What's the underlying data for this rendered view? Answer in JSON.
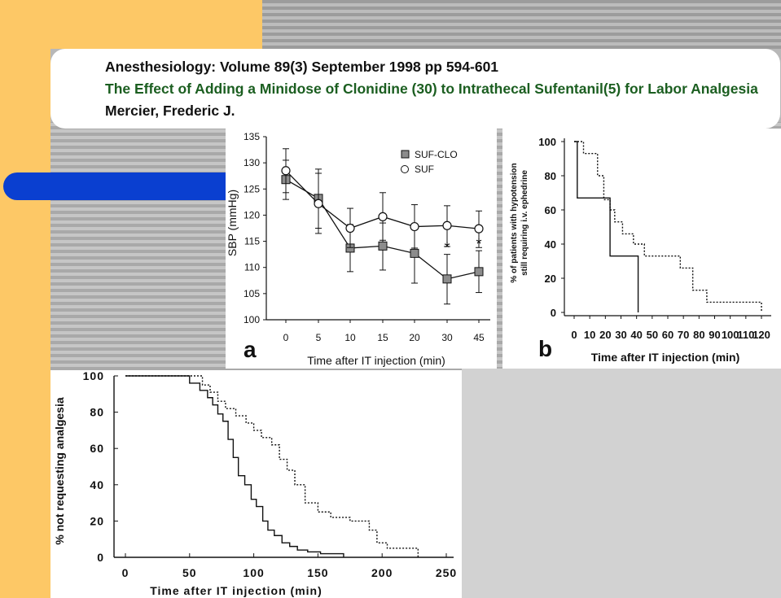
{
  "slide": {
    "colors": {
      "accent_yellow": "#fdc866",
      "accent_blue": "#0a3fd0",
      "subtitle_green": "#1b5e20"
    }
  },
  "header": {
    "line1": "Anesthesiology: Volume 89(3) September 1998 pp 594-601",
    "line2": "The Effect of Adding a Minidose of Clonidine (30) to Intrathecal Sufentanil(5) for Labor Analgesia",
    "line3": "Mercier, Frederic J."
  },
  "chart_data": [
    {
      "panel": "a",
      "type": "line",
      "ylabel": "SBP (mmHg)",
      "xlabel": "Time after IT injection (min)",
      "categories": [
        "0",
        "5",
        "10",
        "15",
        "20",
        "30",
        "45"
      ],
      "ylim": [
        100,
        135
      ],
      "yticks": [
        100,
        105,
        110,
        115,
        120,
        125,
        130,
        135
      ],
      "legend_position": "top-right",
      "series": [
        {
          "name": "SUF-CLO",
          "marker": "filled-square",
          "values": [
            126.8,
            123.2,
            113.7,
            114.1,
            112.7,
            107.8,
            109.2
          ],
          "err_low": [
            123.0,
            117.5,
            109.2,
            109.5,
            107.0,
            103.0,
            105.2
          ],
          "err_high": [
            130.5,
            128.8,
            118.2,
            118.5,
            118.0,
            112.5,
            113.2
          ]
        },
        {
          "name": "SUF",
          "marker": "open-circle",
          "values": [
            128.5,
            122.2,
            117.5,
            119.7,
            117.8,
            118.0,
            117.4
          ],
          "err_low": [
            124.3,
            116.5,
            113.8,
            115.2,
            113.7,
            114.0,
            113.8
          ],
          "err_high": [
            132.7,
            128.0,
            121.3,
            124.3,
            122.0,
            121.8,
            120.8
          ]
        }
      ],
      "annotations": [
        {
          "x": "30",
          "text": "*"
        },
        {
          "x": "45",
          "text": "*"
        }
      ]
    },
    {
      "panel": "b",
      "type": "line",
      "ylabel_line1": "% of patients with hypotension",
      "ylabel_line2": "still requiring i.v. ephedrine",
      "xlabel": "Time after IT injection (min)",
      "xticks": [
        0,
        10,
        20,
        30,
        40,
        50,
        60,
        70,
        80,
        90,
        100,
        110,
        120
      ],
      "yticks": [
        0,
        20,
        40,
        60,
        80,
        100
      ],
      "xlim": [
        0,
        120
      ],
      "ylim": [
        0,
        100
      ],
      "series": [
        {
          "style": "solid",
          "x": [
            0,
            2,
            2,
            23,
            23,
            38,
            38,
            41,
            41
          ],
          "y": [
            100,
            100,
            67,
            67,
            33,
            33,
            33,
            33,
            0
          ]
        },
        {
          "style": "dotted",
          "x": [
            0,
            6,
            6,
            15,
            15,
            19,
            19,
            23,
            23,
            26,
            26,
            31,
            31,
            38,
            38,
            45,
            45,
            58,
            58,
            68,
            68,
            76,
            76,
            85,
            85,
            98,
            98,
            110,
            110,
            120,
            120
          ],
          "y": [
            100,
            100,
            93,
            93,
            80,
            80,
            66,
            66,
            60,
            60,
            53,
            53,
            46,
            46,
            40,
            40,
            33,
            33,
            33,
            33,
            26,
            26,
            13,
            13,
            6,
            6,
            6,
            6,
            6,
            6,
            0
          ]
        }
      ]
    },
    {
      "panel": "c",
      "type": "line",
      "ylabel": "% not requesting analgesia",
      "xlabel": "Time after IT injection (min)",
      "xticks": [
        0,
        50,
        100,
        150,
        200,
        250
      ],
      "yticks": [
        0,
        20,
        40,
        60,
        80,
        100
      ],
      "xlim": [
        0,
        250
      ],
      "ylim": [
        0,
        100
      ],
      "series": [
        {
          "style": "solid",
          "x": [
            0,
            50,
            50,
            58,
            58,
            64,
            64,
            68,
            68,
            72,
            72,
            76,
            76,
            80,
            80,
            84,
            84,
            88,
            88,
            93,
            93,
            98,
            98,
            102,
            102,
            107,
            107,
            111,
            111,
            116,
            116,
            122,
            122,
            128,
            128,
            134,
            134,
            142,
            142,
            152,
            152,
            170,
            170
          ],
          "y": [
            100,
            100,
            96,
            96,
            92,
            92,
            88,
            88,
            84,
            84,
            79,
            79,
            75,
            75,
            65,
            65,
            55,
            55,
            45,
            45,
            40,
            40,
            32,
            32,
            28,
            28,
            20,
            20,
            15,
            15,
            12,
            12,
            8,
            8,
            6,
            6,
            4,
            4,
            3,
            3,
            2,
            2,
            0
          ]
        },
        {
          "style": "dotted",
          "x": [
            0,
            60,
            60,
            66,
            66,
            72,
            72,
            78,
            78,
            86,
            86,
            94,
            94,
            100,
            100,
            106,
            106,
            114,
            114,
            120,
            120,
            126,
            126,
            132,
            132,
            140,
            140,
            150,
            150,
            160,
            160,
            175,
            175,
            190,
            190,
            196,
            196,
            204,
            204,
            228,
            228
          ],
          "y": [
            100,
            100,
            95,
            95,
            91,
            91,
            86,
            86,
            82,
            82,
            78,
            78,
            74,
            74,
            70,
            70,
            66,
            66,
            62,
            62,
            54,
            54,
            48,
            48,
            40,
            40,
            30,
            30,
            25,
            25,
            22,
            22,
            20,
            20,
            15,
            15,
            8,
            8,
            5,
            5,
            0
          ]
        }
      ]
    }
  ],
  "panel_labels": {
    "a": "a",
    "b": "b"
  }
}
